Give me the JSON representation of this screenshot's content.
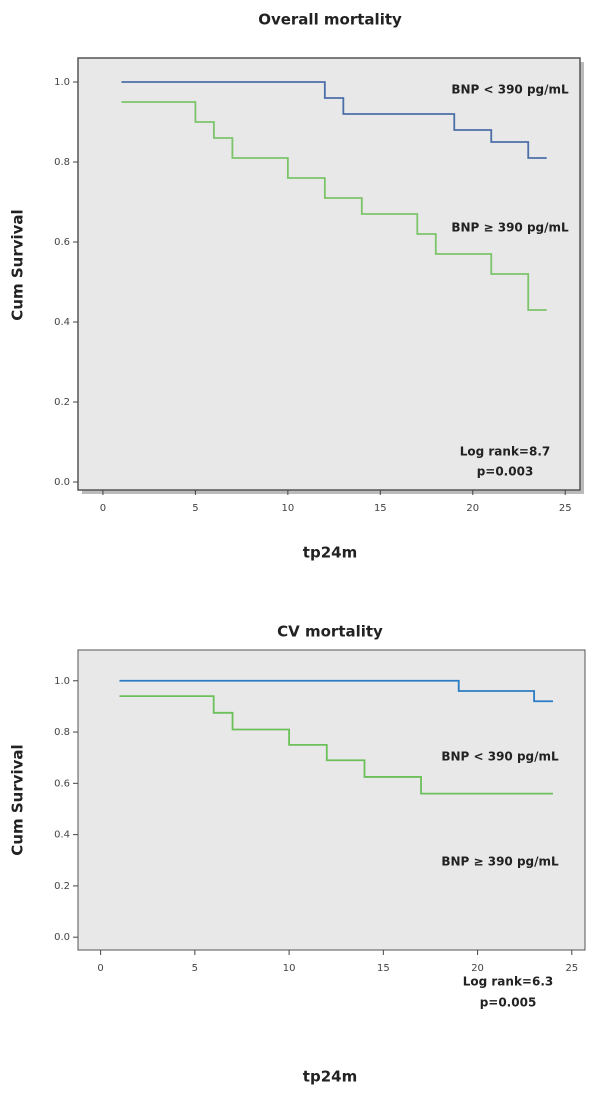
{
  "chart_data": [
    {
      "type": "step",
      "title": "Overall mortality",
      "xlabel": "tp24m",
      "ylabel": "Cum Survival",
      "x": [
        1,
        5,
        6,
        7,
        10,
        12,
        13,
        14,
        17,
        18,
        19,
        21,
        23,
        24
      ],
      "series": [
        {
          "name": "BNP < 390 pg/mL",
          "color": "#4d6fa8",
          "values": [
            1.0,
            1.0,
            1.0,
            1.0,
            1.0,
            0.96,
            0.92,
            0.92,
            0.92,
            0.92,
            0.88,
            0.85,
            0.81,
            0.81
          ]
        },
        {
          "name": "BNP ≥ 390 pg/mL",
          "color": "#7cc46a",
          "values": [
            0.95,
            0.9,
            0.86,
            0.81,
            0.76,
            0.71,
            0.71,
            0.67,
            0.62,
            0.57,
            0.57,
            0.52,
            0.43,
            0.43
          ]
        }
      ],
      "annotations": [
        "Log rank=8.7",
        "p=0.003"
      ],
      "xlim": [
        -1.35,
        25.8
      ],
      "ylim": [
        -0.02,
        1.06
      ],
      "xticks": [
        0,
        5,
        10,
        15,
        20,
        25
      ],
      "yticks": [
        {
          "value": 0,
          "label": "0.0"
        },
        0.2,
        0.4,
        0.6,
        0.8,
        {
          "value": 1,
          "label": "1.0"
        }
      ],
      "grid": false
    },
    {
      "type": "step",
      "title": "CV mortality",
      "xlabel": "tp24m",
      "ylabel": "Cum Survival",
      "x": [
        1,
        6,
        7,
        10,
        12,
        14,
        17,
        19,
        23,
        24
      ],
      "series": [
        {
          "name": "BNP < 390 pg/mL",
          "color": "#2a7cc4",
          "values": [
            1.0,
            1.0,
            1.0,
            1.0,
            1.0,
            1.0,
            1.0,
            0.96,
            0.92,
            0.92
          ]
        },
        {
          "name": "BNP ≥ 390 pg/mL",
          "color": "#6cc05a",
          "values": [
            0.94,
            0.875,
            0.81,
            0.75,
            0.69,
            0.625,
            0.56,
            0.56,
            0.56,
            0.56
          ]
        }
      ],
      "annotations": [
        "Log rank=6.3",
        "p=0.005"
      ],
      "xlim": [
        -1.2,
        25.7
      ],
      "ylim": [
        -0.05,
        1.12
      ],
      "xticks": [
        0,
        5,
        10,
        15,
        20,
        25
      ],
      "yticks": [
        {
          "value": 0,
          "label": "0.0"
        },
        0.2,
        0.4,
        0.6,
        0.8,
        {
          "value": 1,
          "label": "1.0"
        }
      ],
      "grid": false
    }
  ]
}
